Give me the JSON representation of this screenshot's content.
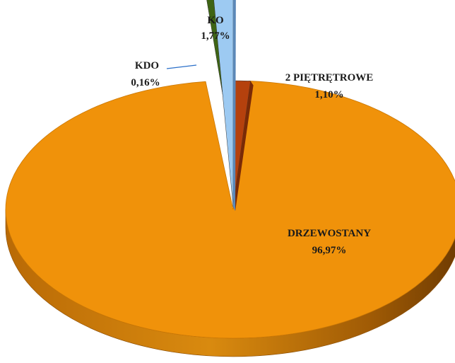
{
  "chart_data": {
    "type": "pie",
    "style": "3d-exploded",
    "categories": [
      "2 PIĘTRĘTROWE",
      "DRZEWOSTANY",
      "KDO",
      "KO"
    ],
    "values": [
      1.1,
      96.97,
      0.16,
      1.77
    ],
    "value_labels": [
      "1,10%",
      "96,97%",
      "0,16%",
      "1,77%"
    ],
    "colors": [
      "#b5410d",
      "#f0920a",
      "#3e6415",
      "#9dcaf2"
    ],
    "title": "",
    "legend": "none"
  }
}
